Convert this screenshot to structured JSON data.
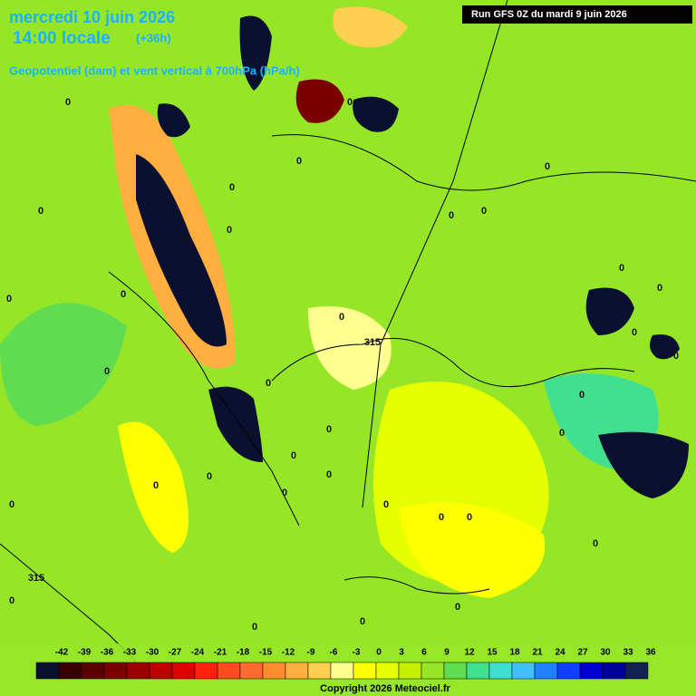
{
  "header": {
    "date": "mercredi 10 juin 2026",
    "time": "14:00 locale",
    "lead": "(+36h)",
    "subtitle": "Geopotentiel (dam) et vent vertical à 700hPa (hPa/h)",
    "run": "Run GFS 0Z du mardi 9 juin 2026"
  },
  "contour_labels": [
    "0",
    "0",
    "0",
    "0",
    "0",
    "0",
    "0",
    "0",
    "0",
    "0",
    "0",
    "0",
    "0",
    "0",
    "0",
    "0",
    "0",
    "0",
    "0",
    "0",
    "0",
    "0",
    "0",
    "0",
    "0",
    "0",
    "0",
    "0",
    "0",
    "0",
    "0",
    "0",
    "0",
    "0",
    "0",
    "0",
    "0",
    "0",
    "0",
    "315",
    "315"
  ],
  "legend": {
    "values": [
      -42,
      -39,
      -36,
      -33,
      -30,
      -27,
      -24,
      -21,
      -18,
      -15,
      -12,
      -9,
      -6,
      -3,
      0,
      3,
      6,
      9,
      12,
      15,
      18,
      21,
      24,
      27,
      30,
      33,
      36
    ],
    "colors": [
      "#0b1030",
      "#3a0000",
      "#5a0000",
      "#7a0000",
      "#9a0000",
      "#bb0000",
      "#dd0000",
      "#ff2010",
      "#ff4a20",
      "#ff6a30",
      "#ff8c30",
      "#ffae40",
      "#ffd050",
      "#ffff90",
      "#ffff00",
      "#e6ff00",
      "#c4f000",
      "#96e628",
      "#60dc50",
      "#40e090",
      "#40e0d0",
      "#40c0ff",
      "#2080ff",
      "#1040ff",
      "#0000d0",
      "#00009a",
      "#102050"
    ]
  },
  "copyright": "Copyright 2026 Meteociel.fr"
}
